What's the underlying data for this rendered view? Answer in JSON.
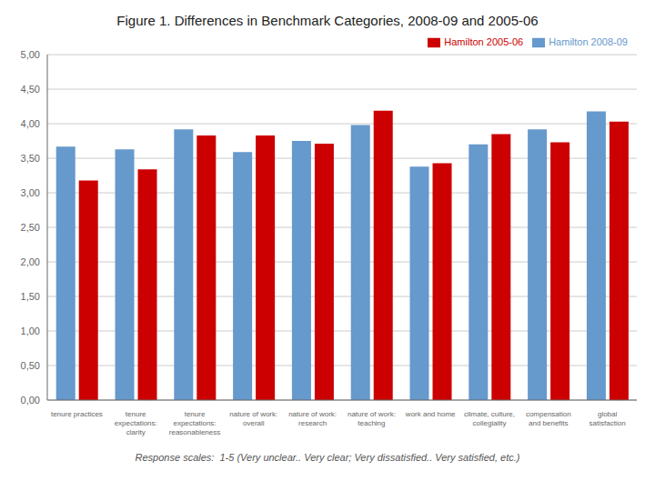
{
  "chart_data": {
    "type": "bar",
    "title": "Figure 1. Differences in Benchmark Categories, 2008-09 and 2005-06",
    "categories": [
      "tenure practices",
      "tenure\nexpectations:\nclarity",
      "tenure\nexpectations:\nreasonableness",
      "nature of work:\noverall",
      "nature of work:\nresearch",
      "nature of work:\nteaching",
      "work and home",
      "climate, culture,\ncollegiality",
      "compensation\nand benefits",
      "global\nsatisfaction"
    ],
    "series": [
      {
        "name": "Hamilton 2008-09",
        "color": "#6699CC",
        "values": [
          3.67,
          3.63,
          3.92,
          3.59,
          3.75,
          3.98,
          3.38,
          3.7,
          3.92,
          4.18
        ]
      },
      {
        "name": "Hamilton 2005-06",
        "color": "#CC0000",
        "values": [
          3.18,
          3.34,
          3.83,
          3.83,
          3.71,
          4.19,
          3.43,
          3.85,
          3.73,
          4.03
        ]
      }
    ],
    "ylim": [
      0,
      5.0
    ],
    "yticks": [
      {
        "value": 0.0,
        "label": "0,00"
      },
      {
        "value": 0.5,
        "label": "0,50"
      },
      {
        "value": 1.0,
        "label": "1,00"
      },
      {
        "value": 1.5,
        "label": "1,50"
      },
      {
        "value": 2.0,
        "label": "2,00"
      },
      {
        "value": 2.5,
        "label": "2,50"
      },
      {
        "value": 3.0,
        "label": "3,00"
      },
      {
        "value": 3.5,
        "label": "3,50"
      },
      {
        "value": 4.0,
        "label": "4,00"
      },
      {
        "value": 4.5,
        "label": "4,50"
      },
      {
        "value": 5.0,
        "label": "5,00"
      }
    ],
    "grid": true,
    "legend": "upper right",
    "annotations": [
      "Response scales:  1-5 (Very unclear.. Very clear; Very dissatisfied.. Very satisfied, etc.)"
    ]
  }
}
